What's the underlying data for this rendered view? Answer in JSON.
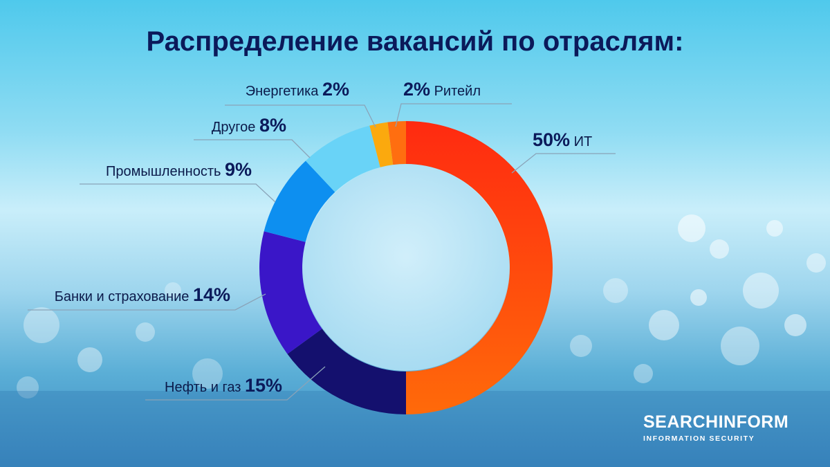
{
  "chart_data": {
    "type": "pie",
    "title": "Распределение вакансий по отраслям:",
    "slices": [
      {
        "label": "ИТ",
        "value": 50,
        "value_label": "50%",
        "color": "#ff4a0c"
      },
      {
        "label": "Нефть и газ",
        "value": 15,
        "value_label": "15%",
        "color": "#14106e"
      },
      {
        "label": "Банки и страхование",
        "value": 14,
        "value_label": "14%",
        "color": "#3a16c8"
      },
      {
        "label": "Промышленность",
        "value": 9,
        "value_label": "9%",
        "color": "#0d8ff0"
      },
      {
        "label": "Другое",
        "value": 8,
        "value_label": "8%",
        "color": "#69d3f7"
      },
      {
        "label": "Энергетика",
        "value": 2,
        "value_label": "2%",
        "color": "#fba90e"
      },
      {
        "label": "Ритейл",
        "value": 2,
        "value_label": "2%",
        "color": "#ff6e10"
      }
    ]
  },
  "brand": {
    "name": "SEARCHINFORM",
    "tagline": "INFORMATION SECURITY"
  }
}
